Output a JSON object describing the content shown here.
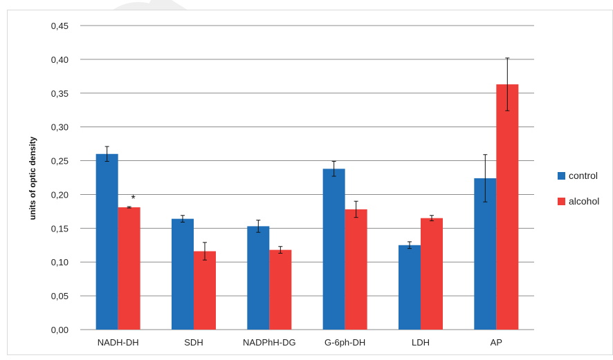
{
  "chart_data": {
    "type": "bar",
    "title": "",
    "xlabel": "",
    "ylabel": "units of optic density",
    "ylim": [
      0,
      0.45
    ],
    "yticks": [
      "0,00",
      "0,05",
      "0,10",
      "0,15",
      "0,20",
      "0,25",
      "0,30",
      "0,35",
      "0,40",
      "0,45"
    ],
    "categories": [
      "NADH-DH",
      "SDH",
      "NADPhH-DG",
      "G-6ph-DH",
      "LDH",
      "AP"
    ],
    "series": [
      {
        "name": "control",
        "color": "#1f70b8",
        "values": [
          0.26,
          0.164,
          0.153,
          0.238,
          0.125,
          0.224
        ],
        "errors": [
          0.011,
          0.005,
          0.009,
          0.011,
          0.005,
          0.035
        ]
      },
      {
        "name": "alcohol",
        "color": "#ef3e3a",
        "values": [
          0.181,
          0.116,
          0.118,
          0.178,
          0.165,
          0.363
        ],
        "errors": [
          0.001,
          0.013,
          0.005,
          0.012,
          0.004,
          0.039
        ]
      }
    ],
    "annotations": [
      {
        "text": "*",
        "category": "NADH-DH",
        "series": "alcohol"
      }
    ],
    "grid": true,
    "legend_position": "right"
  },
  "legend": {
    "items": [
      "control",
      "alcohol"
    ]
  }
}
